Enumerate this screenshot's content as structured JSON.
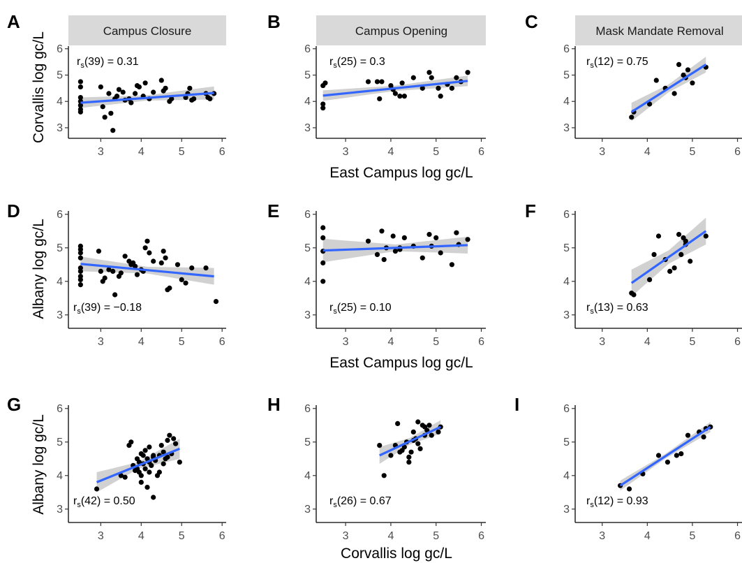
{
  "figure": {
    "panels_top_labels": [
      "Campus Closure",
      "Campus Opening",
      "Mask Mandate Removal"
    ],
    "x_titles": [
      "East Campus log gc/L",
      "East Campus log gc/L",
      "Corvallis log gc/L"
    ],
    "y_titles": [
      "Corvallis log gc/L",
      "Albany log gc/L",
      "Albany log gc/L"
    ]
  },
  "chart_data": [
    {
      "panel": "A",
      "type": "scatter",
      "strip": "Campus Closure",
      "ylabel": "Corvallis log gc/L",
      "xlabel": "",
      "xlim": [
        2.2,
        6.1
      ],
      "ylim": [
        2.6,
        6.1
      ],
      "xticks": [
        3,
        4,
        5,
        6
      ],
      "yticks": [
        3,
        4,
        5,
        6
      ],
      "annotation": {
        "pre": "r",
        "sub": "s",
        "post": "(39) = 0.31"
      },
      "fit": {
        "x": [
          2.5,
          5.8
        ],
        "y": [
          3.95,
          4.32
        ],
        "ci": [
          0.2,
          0.1,
          0.25
        ]
      },
      "points": [
        [
          2.5,
          4.75
        ],
        [
          2.5,
          4.55
        ],
        [
          2.5,
          4.15
        ],
        [
          2.5,
          4.0
        ],
        [
          2.5,
          3.85
        ],
        [
          2.5,
          3.7
        ],
        [
          2.5,
          3.6
        ],
        [
          3.0,
          4.55
        ],
        [
          3.05,
          3.8
        ],
        [
          3.1,
          3.4
        ],
        [
          3.2,
          4.3
        ],
        [
          3.25,
          3.55
        ],
        [
          3.3,
          2.9
        ],
        [
          3.35,
          4.1
        ],
        [
          3.4,
          4.2
        ],
        [
          3.45,
          4.45
        ],
        [
          3.55,
          4.35
        ],
        [
          3.6,
          4.05
        ],
        [
          3.7,
          4.1
        ],
        [
          3.75,
          3.95
        ],
        [
          3.85,
          4.3
        ],
        [
          3.9,
          4.6
        ],
        [
          3.95,
          4.55
        ],
        [
          4.05,
          4.2
        ],
        [
          4.1,
          4.7
        ],
        [
          4.2,
          4.1
        ],
        [
          4.3,
          4.35
        ],
        [
          4.5,
          4.8
        ],
        [
          4.55,
          4.4
        ],
        [
          4.6,
          4.5
        ],
        [
          4.7,
          4.0
        ],
        [
          4.75,
          4.1
        ],
        [
          5.1,
          4.15
        ],
        [
          5.15,
          4.3
        ],
        [
          5.2,
          4.5
        ],
        [
          5.25,
          4.05
        ],
        [
          5.3,
          4.1
        ],
        [
          5.6,
          4.3
        ],
        [
          5.65,
          4.15
        ],
        [
          5.7,
          4.1
        ],
        [
          5.8,
          4.3
        ]
      ]
    },
    {
      "panel": "B",
      "type": "scatter",
      "strip": "Campus Opening",
      "ylabel": "",
      "xlabel": "East Campus log gc/L",
      "xlim": [
        2.35,
        6.1
      ],
      "ylim": [
        2.6,
        6.1
      ],
      "xticks": [
        3,
        4,
        5,
        6
      ],
      "yticks": [
        3,
        4,
        5,
        6
      ],
      "annotation": {
        "pre": "r",
        "sub": "s",
        "post": "(25) = 0.3"
      },
      "fit": {
        "x": [
          2.5,
          5.7
        ],
        "y": [
          4.22,
          4.78
        ],
        "ci": [
          0.2,
          0.1,
          0.2
        ]
      },
      "points": [
        [
          2.5,
          4.6
        ],
        [
          2.5,
          3.9
        ],
        [
          2.5,
          3.75
        ],
        [
          2.55,
          4.7
        ],
        [
          3.5,
          4.75
        ],
        [
          3.7,
          4.75
        ],
        [
          3.75,
          4.1
        ],
        [
          3.8,
          4.75
        ],
        [
          4.0,
          4.6
        ],
        [
          4.05,
          4.45
        ],
        [
          4.1,
          4.3
        ],
        [
          4.2,
          4.2
        ],
        [
          4.25,
          4.7
        ],
        [
          4.5,
          4.9
        ],
        [
          4.7,
          4.5
        ],
        [
          4.85,
          5.1
        ],
        [
          4.9,
          4.9
        ],
        [
          5.05,
          4.5
        ],
        [
          5.1,
          4.2
        ],
        [
          5.25,
          4.65
        ],
        [
          5.35,
          4.5
        ],
        [
          5.45,
          4.9
        ],
        [
          5.55,
          4.75
        ],
        [
          5.7,
          5.1
        ],
        [
          4.3,
          4.2
        ]
      ]
    },
    {
      "panel": "C",
      "type": "scatter",
      "strip": "Mask Mandate Removal",
      "ylabel": "",
      "xlabel": "",
      "xlim": [
        2.4,
        6.1
      ],
      "ylim": [
        2.6,
        6.1
      ],
      "xticks": [
        3,
        4,
        5,
        6
      ],
      "yticks": [
        3,
        4,
        5,
        6
      ],
      "annotation": {
        "pre": "r",
        "sub": "s",
        "post": "(12) = 0.75"
      },
      "fit": {
        "x": [
          3.65,
          5.3
        ],
        "y": [
          3.6,
          5.4
        ],
        "ci": [
          0.35,
          0.15,
          0.3
        ]
      },
      "points": [
        [
          3.65,
          3.4
        ],
        [
          3.7,
          3.6
        ],
        [
          4.05,
          3.9
        ],
        [
          4.2,
          4.8
        ],
        [
          4.4,
          4.5
        ],
        [
          4.6,
          4.3
        ],
        [
          4.7,
          5.4
        ],
        [
          4.85,
          4.9
        ],
        [
          4.9,
          5.2
        ],
        [
          5.0,
          4.7
        ],
        [
          5.3,
          5.3
        ],
        [
          4.8,
          5.0
        ]
      ]
    },
    {
      "panel": "D",
      "type": "scatter",
      "strip": "",
      "ylabel": "Albany log gc/L",
      "xlabel": "",
      "xlim": [
        2.2,
        6.1
      ],
      "ylim": [
        2.6,
        6.1
      ],
      "xticks": [
        3,
        4,
        5,
        6
      ],
      "yticks": [
        3,
        4,
        5,
        6
      ],
      "annotation": {
        "pre": "r",
        "sub": "s",
        "post": "(39) = −0.18"
      },
      "fit": {
        "x": [
          2.5,
          5.8
        ],
        "y": [
          4.52,
          4.15
        ],
        "ci": [
          0.22,
          0.1,
          0.25
        ]
      },
      "points": [
        [
          2.5,
          5.05
        ],
        [
          2.5,
          4.95
        ],
        [
          2.5,
          4.85
        ],
        [
          2.5,
          4.7
        ],
        [
          2.5,
          4.4
        ],
        [
          2.5,
          4.3
        ],
        [
          2.5,
          4.15
        ],
        [
          2.5,
          4.05
        ],
        [
          2.5,
          3.9
        ],
        [
          2.95,
          4.9
        ],
        [
          3.0,
          4.3
        ],
        [
          3.05,
          4.0
        ],
        [
          3.1,
          4.1
        ],
        [
          3.2,
          4.35
        ],
        [
          3.3,
          4.3
        ],
        [
          3.35,
          3.6
        ],
        [
          3.45,
          4.15
        ],
        [
          3.5,
          4.25
        ],
        [
          3.6,
          4.75
        ],
        [
          3.7,
          4.6
        ],
        [
          3.75,
          4.5
        ],
        [
          3.85,
          4.45
        ],
        [
          3.9,
          4.2
        ],
        [
          4.0,
          4.35
        ],
        [
          4.05,
          4.3
        ],
        [
          4.1,
          5.0
        ],
        [
          4.15,
          5.2
        ],
        [
          4.2,
          4.85
        ],
        [
          4.3,
          4.6
        ],
        [
          4.5,
          4.55
        ],
        [
          4.6,
          4.7
        ],
        [
          4.65,
          3.75
        ],
        [
          4.7,
          3.8
        ],
        [
          4.9,
          4.5
        ],
        [
          5.0,
          4.05
        ],
        [
          5.1,
          3.95
        ],
        [
          5.25,
          4.4
        ],
        [
          5.6,
          4.4
        ],
        [
          5.85,
          3.4
        ],
        [
          4.55,
          4.9
        ],
        [
          3.8,
          4.55
        ]
      ]
    },
    {
      "panel": "E",
      "type": "scatter",
      "strip": "",
      "ylabel": "",
      "xlabel": "East Campus log gc/L",
      "xlim": [
        2.35,
        6.1
      ],
      "ylim": [
        2.6,
        6.1
      ],
      "xticks": [
        3,
        4,
        5,
        6
      ],
      "yticks": [
        3,
        4,
        5,
        6
      ],
      "annotation": {
        "pre": "r",
        "sub": "s",
        "post": "(25) = 0.10"
      },
      "fit": {
        "x": [
          2.5,
          5.7
        ],
        "y": [
          4.92,
          5.08
        ],
        "ci": [
          0.35,
          0.1,
          0.25
        ]
      },
      "points": [
        [
          2.5,
          5.6
        ],
        [
          2.5,
          5.3
        ],
        [
          2.5,
          4.9
        ],
        [
          2.5,
          4.55
        ],
        [
          2.5,
          4.0
        ],
        [
          3.5,
          5.2
        ],
        [
          3.7,
          4.8
        ],
        [
          3.8,
          5.5
        ],
        [
          3.85,
          4.65
        ],
        [
          3.9,
          5.0
        ],
        [
          4.05,
          5.35
        ],
        [
          4.1,
          4.9
        ],
        [
          4.2,
          5.0
        ],
        [
          4.3,
          5.3
        ],
        [
          4.5,
          5.05
        ],
        [
          4.7,
          4.7
        ],
        [
          4.85,
          5.4
        ],
        [
          4.9,
          5.05
        ],
        [
          5.0,
          5.3
        ],
        [
          5.1,
          4.85
        ],
        [
          5.35,
          4.5
        ],
        [
          5.45,
          5.45
        ],
        [
          5.5,
          5.1
        ],
        [
          5.7,
          5.25
        ],
        [
          4.2,
          4.95
        ]
      ]
    },
    {
      "panel": "F",
      "type": "scatter",
      "strip": "",
      "ylabel": "",
      "xlabel": "",
      "xlim": [
        2.4,
        6.1
      ],
      "ylim": [
        2.6,
        6.1
      ],
      "xticks": [
        3,
        4,
        5,
        6
      ],
      "yticks": [
        3,
        4,
        5,
        6
      ],
      "annotation": {
        "pre": "r",
        "sub": "s",
        "post": "(13) = 0.63"
      },
      "fit": {
        "x": [
          3.65,
          5.3
        ],
        "y": [
          3.95,
          5.5
        ],
        "ci": [
          0.4,
          0.2,
          0.4
        ]
      },
      "points": [
        [
          3.65,
          3.65
        ],
        [
          3.7,
          3.6
        ],
        [
          4.05,
          4.05
        ],
        [
          4.15,
          4.8
        ],
        [
          4.25,
          5.35
        ],
        [
          4.4,
          4.65
        ],
        [
          4.6,
          4.4
        ],
        [
          4.7,
          5.4
        ],
        [
          4.75,
          4.8
        ],
        [
          4.8,
          5.3
        ],
        [
          4.85,
          5.1
        ],
        [
          4.95,
          4.6
        ],
        [
          5.3,
          5.35
        ],
        [
          4.5,
          4.3
        ],
        [
          4.85,
          5.2
        ]
      ]
    },
    {
      "panel": "G",
      "type": "scatter",
      "strip": "",
      "ylabel": "Albany log gc/L",
      "xlabel": "",
      "xlim": [
        2.2,
        6.1
      ],
      "ylim": [
        2.6,
        6.1
      ],
      "xticks": [
        3,
        4,
        5,
        6
      ],
      "yticks": [
        3,
        4,
        5,
        6
      ],
      "annotation": {
        "pre": "r",
        "sub": "s",
        "post": "(42) = 0.50"
      },
      "fit": {
        "x": [
          2.9,
          4.95
        ],
        "y": [
          3.8,
          4.8
        ],
        "ci": [
          0.3,
          0.1,
          0.3
        ]
      },
      "points": [
        [
          2.9,
          3.6
        ],
        [
          3.5,
          4.0
        ],
        [
          3.7,
          4.9
        ],
        [
          3.75,
          5.0
        ],
        [
          3.8,
          4.3
        ],
        [
          3.85,
          4.15
        ],
        [
          3.9,
          4.5
        ],
        [
          3.9,
          4.2
        ],
        [
          3.95,
          4.4
        ],
        [
          4.0,
          4.0
        ],
        [
          4.0,
          3.8
        ],
        [
          4.05,
          4.6
        ],
        [
          4.05,
          4.35
        ],
        [
          4.1,
          4.75
        ],
        [
          4.1,
          4.2
        ],
        [
          4.15,
          4.5
        ],
        [
          4.15,
          3.65
        ],
        [
          4.2,
          4.1
        ],
        [
          4.2,
          4.85
        ],
        [
          4.25,
          4.3
        ],
        [
          4.3,
          3.35
        ],
        [
          4.3,
          4.55
        ],
        [
          4.35,
          4.45
        ],
        [
          4.4,
          4.0
        ],
        [
          4.45,
          4.6
        ],
        [
          4.5,
          4.9
        ],
        [
          4.55,
          4.7
        ],
        [
          4.6,
          4.5
        ],
        [
          4.65,
          5.05
        ],
        [
          4.7,
          5.2
        ],
        [
          4.75,
          4.65
        ],
        [
          4.8,
          5.1
        ],
        [
          4.85,
          4.95
        ],
        [
          4.95,
          4.4
        ],
        [
          4.3,
          4.6
        ],
        [
          4.0,
          4.65
        ],
        [
          3.6,
          3.95
        ],
        [
          4.45,
          4.1
        ],
        [
          4.2,
          4.4
        ],
        [
          3.95,
          4.1
        ],
        [
          4.55,
          4.35
        ],
        [
          4.65,
          4.55
        ]
      ]
    },
    {
      "panel": "H",
      "type": "scatter",
      "strip": "",
      "ylabel": "",
      "xlabel": "Corvallis log gc/L",
      "xlim": [
        2.35,
        6.1
      ],
      "ylim": [
        2.6,
        6.1
      ],
      "xticks": [
        3,
        4,
        5,
        6
      ],
      "yticks": [
        3,
        4,
        5,
        6
      ],
      "annotation": {
        "pre": "r",
        "sub": "s",
        "post": "(26) = 0.67"
      },
      "fit": {
        "x": [
          3.75,
          5.1
        ],
        "y": [
          4.6,
          5.45
        ],
        "ci": [
          0.25,
          0.1,
          0.2
        ]
      },
      "points": [
        [
          3.75,
          4.9
        ],
        [
          3.85,
          4.0
        ],
        [
          4.0,
          4.6
        ],
        [
          4.1,
          4.9
        ],
        [
          4.15,
          5.55
        ],
        [
          4.2,
          4.7
        ],
        [
          4.3,
          4.85
        ],
        [
          4.35,
          5.0
        ],
        [
          4.4,
          4.55
        ],
        [
          4.45,
          4.7
        ],
        [
          4.5,
          5.3
        ],
        [
          4.55,
          5.1
        ],
        [
          4.6,
          5.6
        ],
        [
          4.65,
          4.8
        ],
        [
          4.7,
          5.5
        ],
        [
          4.75,
          5.2
        ],
        [
          4.8,
          5.35
        ],
        [
          4.85,
          5.5
        ],
        [
          4.9,
          5.2
        ],
        [
          5.05,
          5.3
        ],
        [
          5.1,
          5.45
        ],
        [
          4.4,
          4.4
        ],
        [
          4.6,
          4.95
        ],
        [
          4.75,
          5.45
        ],
        [
          4.5,
          5.05
        ],
        [
          4.25,
          4.75
        ]
      ]
    },
    {
      "panel": "I",
      "type": "scatter",
      "strip": "",
      "ylabel": "",
      "xlabel": "",
      "xlim": [
        2.4,
        6.1
      ],
      "ylim": [
        2.6,
        6.1
      ],
      "xticks": [
        3,
        4,
        5,
        6
      ],
      "yticks": [
        3,
        4,
        5,
        6
      ],
      "annotation": {
        "pre": "r",
        "sub": "s",
        "post": "(12) = 0.93"
      },
      "fit": {
        "x": [
          3.4,
          5.4
        ],
        "y": [
          3.7,
          5.45
        ],
        "ci": [
          0.15,
          0.07,
          0.15
        ]
      },
      "points": [
        [
          3.4,
          3.7
        ],
        [
          3.6,
          3.6
        ],
        [
          3.9,
          4.05
        ],
        [
          4.25,
          4.6
        ],
        [
          4.45,
          4.4
        ],
        [
          4.65,
          4.6
        ],
        [
          4.75,
          4.65
        ],
        [
          4.9,
          5.2
        ],
        [
          5.15,
          5.3
        ],
        [
          5.25,
          5.15
        ],
        [
          5.3,
          5.4
        ],
        [
          5.4,
          5.45
        ]
      ]
    }
  ]
}
